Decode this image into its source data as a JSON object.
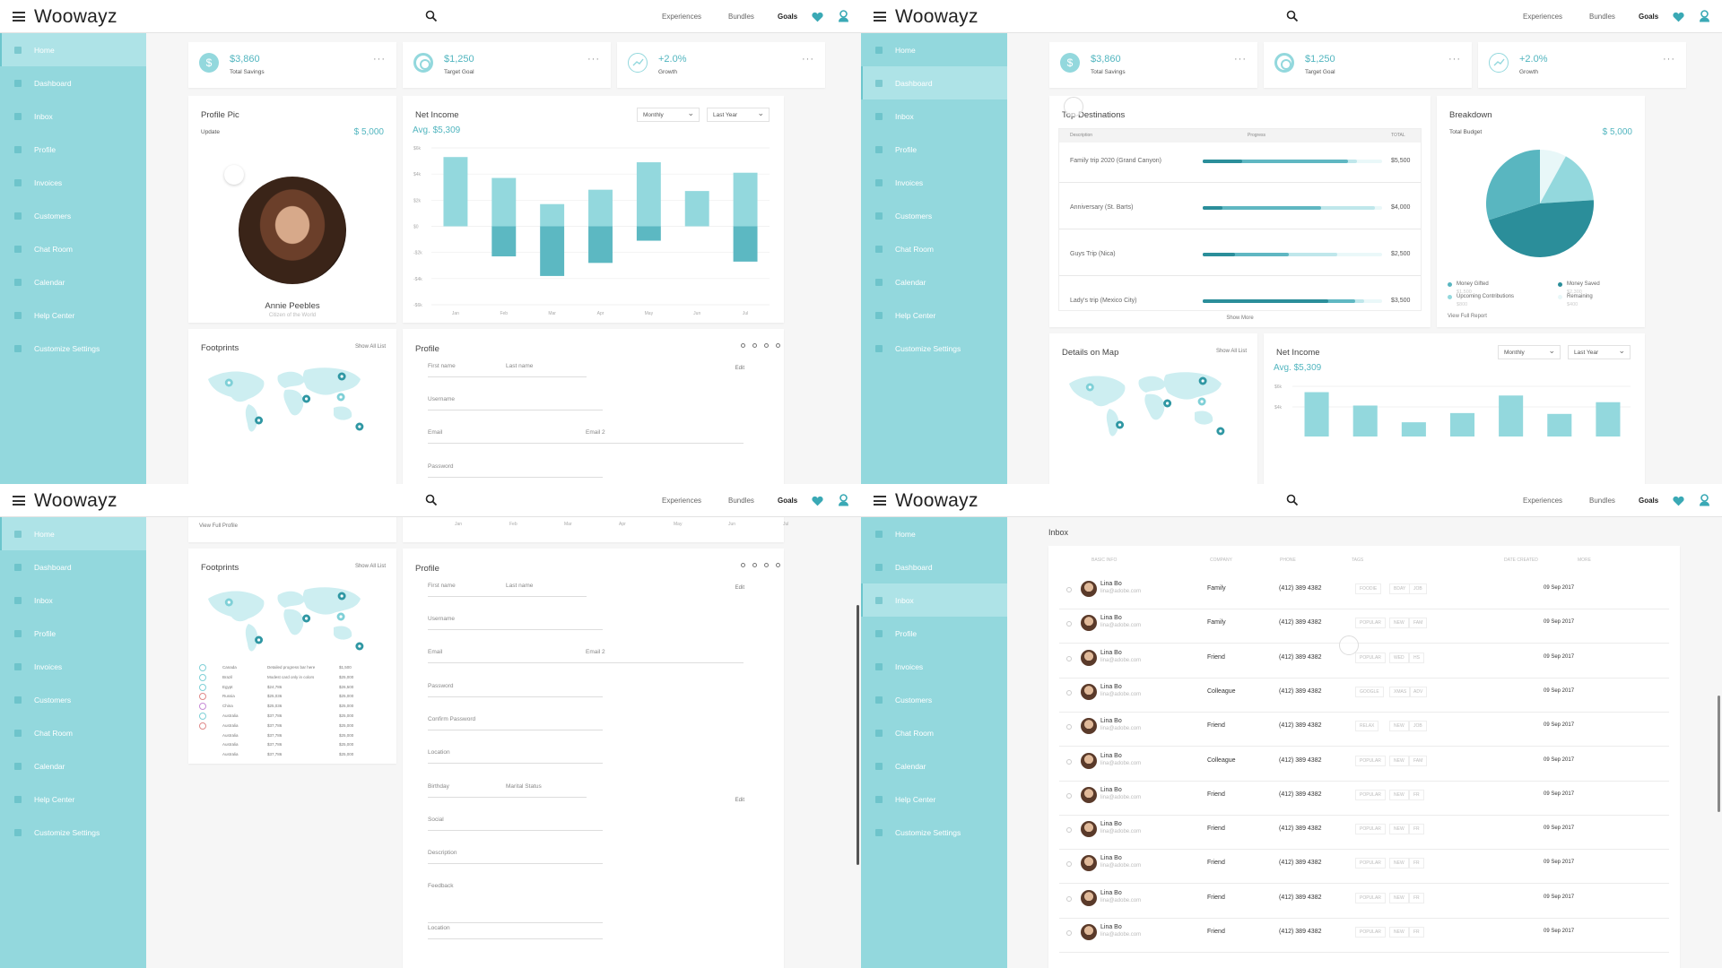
{
  "app": {
    "logo": "Woowayz",
    "nav": [
      "Experiences",
      "Bundles",
      "Goals"
    ]
  },
  "colors": {
    "sidebar": "#93d8dd",
    "accent": "#51b5bf",
    "dark": "#2b8e9a"
  },
  "sidebar": {
    "items": [
      "Home",
      "Dashboard",
      "Inbox",
      "Profile",
      "Invoices",
      "Customers",
      "Chat Room",
      "Calendar",
      "Help Center",
      "Customize Settings"
    ]
  },
  "stats": [
    {
      "value": "$3,860",
      "label": "Total Savings"
    },
    {
      "value": "$1,250",
      "label": "Target Goal"
    },
    {
      "value": "+2.0%",
      "label": "Growth"
    }
  ],
  "profile_pic": {
    "title": "Profile Pic",
    "update": "Update",
    "amount": "$ 5,000",
    "name": "Annie Peebles",
    "subtitle": "Citizen of the World",
    "link": "View Full Profile"
  },
  "net_income": {
    "title": "Net Income",
    "avg": "Avg. $5,309",
    "period": "Monthly",
    "range": "Last Year"
  },
  "chart_data": {
    "type": "bar",
    "categories": [
      "Jan",
      "Feb",
      "Mar",
      "Apr",
      "May",
      "Jun",
      "Jul"
    ],
    "y_ticks": [
      "$6k",
      "$4k",
      "$2k",
      "$0",
      "-$2k",
      "-$4k",
      "-$6k"
    ],
    "ylim": [
      -6,
      6
    ],
    "series": [
      {
        "values": [
          5.3,
          3.7,
          1.7,
          2.8,
          4.9,
          2.7,
          4.1
        ]
      },
      {
        "values": [
          0,
          -2.3,
          -3.8,
          -2.8,
          -1.1,
          0,
          -2.7
        ]
      }
    ]
  },
  "footprints": {
    "title": "Footprints",
    "link": "Show All List",
    "rows": [
      [
        "Canada",
        "Detailed progress bar here",
        "$1,500"
      ],
      [
        "Brazil",
        "Modest card only in colors",
        "$25,000"
      ],
      [
        "Egypt",
        "$24,786",
        "$26,500"
      ],
      [
        "Russia",
        "$25,036",
        "$25,000"
      ],
      [
        "China",
        "$25,036",
        "$25,000"
      ],
      [
        "Australia",
        "$37,786",
        "$25,000"
      ],
      [
        "Australia",
        "$37,786",
        "$25,000"
      ],
      [
        "Australia",
        "$37,786",
        "$25,000"
      ],
      [
        "Australia",
        "$37,786",
        "$25,000"
      ],
      [
        "Australia",
        "$37,786",
        "$25,000"
      ]
    ]
  },
  "profile_form": {
    "title": "Profile",
    "edit": "Edit",
    "fields": {
      "first": "First name",
      "last": "Last name",
      "user": "Username",
      "email": "Email",
      "email2": "Email 2",
      "password": "Password",
      "confirm": "Confirm Password",
      "location": "Location",
      "birthday": "Birthday",
      "marital": "Marital Status",
      "social": "Social",
      "description": "Description",
      "feedback": "Feedback"
    }
  },
  "destinations": {
    "title": "Top Destinations",
    "headers": [
      "Description",
      "Progress",
      "TOTAL"
    ],
    "more": "Show More",
    "rows": [
      {
        "name": "Family trip 2020 (Grand Canyon)",
        "total": "$5,500",
        "dark": 0.22,
        "mid": 0.81,
        "light": 0.86
      },
      {
        "name": "Anniversary (St. Barts)",
        "total": "$4,000",
        "dark": 0.11,
        "mid": 0.66,
        "light": 0.96
      },
      {
        "name": "Guys Trip (Nica)",
        "total": "$2,500",
        "dark": 0.18,
        "mid": 0.48,
        "light": 0.75
      },
      {
        "name": "Lady's trip (Mexico City)",
        "total": "$3,500",
        "dark": 0.7,
        "mid": 0.85,
        "light": 0.9
      }
    ]
  },
  "breakdown": {
    "title": "Breakdown",
    "budget_lbl": "Total Budget",
    "budget": "$ 5,000",
    "link": "View Full Report",
    "legend": [
      {
        "name": "Money Gifted",
        "value": "$1,500"
      },
      {
        "name": "Money Saved",
        "value": "$2,300"
      },
      {
        "name": "Upcoming Contributions",
        "value": "$800"
      },
      {
        "name": "Remaining",
        "value": "$400"
      }
    ],
    "slices": [
      0.3,
      0.46,
      0.16,
      0.08
    ]
  },
  "details_map": {
    "title": "Details on Map",
    "link": "Show All List"
  },
  "inbox": {
    "title": "Inbox",
    "headers": [
      "BASIC INFO",
      "COMPANY",
      "PHONE",
      "TAGS",
      "DATE CREATED",
      "MORE"
    ],
    "rows": [
      {
        "name": "Lina Bo",
        "email": "lina@adobe.com",
        "company": "Family",
        "phone": "(412) 389 4382",
        "tags": [
          "FOODIE",
          "BDAY",
          "JOB"
        ],
        "date": "09 Sep 2017"
      },
      {
        "name": "Lina Bo",
        "email": "lina@adobe.com",
        "company": "Family",
        "phone": "(412) 389 4382",
        "tags": [
          "POPULAR",
          "NEW",
          "FAM"
        ],
        "date": "09 Sep 2017"
      },
      {
        "name": "Lina Bo",
        "email": "lina@adobe.com",
        "company": "Friend",
        "phone": "(412) 389 4382",
        "tags": [
          "POPULAR",
          "WED",
          "HS"
        ],
        "date": "09 Sep 2017"
      },
      {
        "name": "Lina Bo",
        "email": "lina@adobe.com",
        "company": "Colleague",
        "phone": "(412) 389 4382",
        "tags": [
          "GOOGLE",
          "XMAS",
          "ADV"
        ],
        "date": "09 Sep 2017"
      },
      {
        "name": "Lina Bo",
        "email": "lina@adobe.com",
        "company": "Friend",
        "phone": "(412) 389 4382",
        "tags": [
          "RELAX",
          "NEW",
          "JOB"
        ],
        "date": "09 Sep 2017"
      },
      {
        "name": "Lina Bo",
        "email": "lina@adobe.com",
        "company": "Colleague",
        "phone": "(412) 389 4382",
        "tags": [
          "POPULAR",
          "NEW",
          "FAM"
        ],
        "date": "09 Sep 2017"
      },
      {
        "name": "Lina Bo",
        "email": "lina@adobe.com",
        "company": "Friend",
        "phone": "(412) 389 4382",
        "tags": [
          "POPULAR",
          "NEW",
          "FR"
        ],
        "date": "09 Sep 2017"
      },
      {
        "name": "Lina Bo",
        "email": "lina@adobe.com",
        "company": "Friend",
        "phone": "(412) 389 4382",
        "tags": [
          "POPULAR",
          "NEW",
          "FR"
        ],
        "date": "09 Sep 2017"
      },
      {
        "name": "Lina Bo",
        "email": "lina@adobe.com",
        "company": "Friend",
        "phone": "(412) 389 4382",
        "tags": [
          "POPULAR",
          "NEW",
          "FR"
        ],
        "date": "09 Sep 2017"
      },
      {
        "name": "Lina Bo",
        "email": "lina@adobe.com",
        "company": "Friend",
        "phone": "(412) 389 4382",
        "tags": [
          "POPULAR",
          "NEW",
          "FR"
        ],
        "date": "09 Sep 2017"
      },
      {
        "name": "Lina Bo",
        "email": "lina@adobe.com",
        "company": "Friend",
        "phone": "(412) 389 4382",
        "tags": [
          "POPULAR",
          "NEW",
          "FR"
        ],
        "date": "09 Sep 2017"
      }
    ]
  }
}
